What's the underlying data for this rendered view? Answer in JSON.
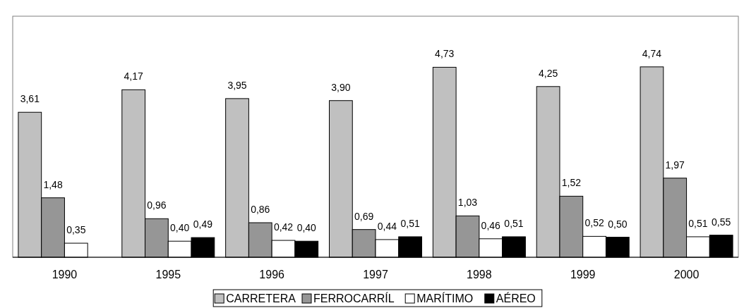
{
  "chart_data": {
    "type": "bar",
    "categories": [
      "1990",
      "1995",
      "1996",
      "1997",
      "1998",
      "1999",
      "2000"
    ],
    "series": [
      {
        "name": "CARRETERA",
        "color": "#c0c0c0",
        "values": [
          3.61,
          4.17,
          3.95,
          3.9,
          4.73,
          4.25,
          4.74
        ],
        "value_labels": [
          "3,61",
          "4,17",
          "3,95",
          "3,90",
          "4,73",
          "4,25",
          "4,74"
        ]
      },
      {
        "name": "FERROCARRÍL",
        "color": "#969696",
        "values": [
          1.48,
          0.96,
          0.86,
          0.69,
          1.03,
          1.52,
          1.97
        ],
        "value_labels": [
          "1,48",
          "0,96",
          "0,86",
          "0,69",
          "1,03",
          "1,52",
          "1,97"
        ]
      },
      {
        "name": "MARÍTIMO",
        "color": "#ffffff",
        "values": [
          0.35,
          0.4,
          0.42,
          0.44,
          0.46,
          0.52,
          0.51
        ],
        "value_labels": [
          "0,35",
          "0,40",
          "0,42",
          "0,44",
          "0,46",
          "0,52",
          "0,51"
        ]
      },
      {
        "name": "AÉREO",
        "color": "#000000",
        "values": [
          null,
          0.49,
          0.4,
          0.51,
          0.51,
          0.5,
          0.55
        ],
        "value_labels": [
          null,
          "0,49",
          "0,40",
          "0,51",
          "0,51",
          "0,50",
          "0,55"
        ]
      }
    ],
    "legend": "bottom"
  }
}
